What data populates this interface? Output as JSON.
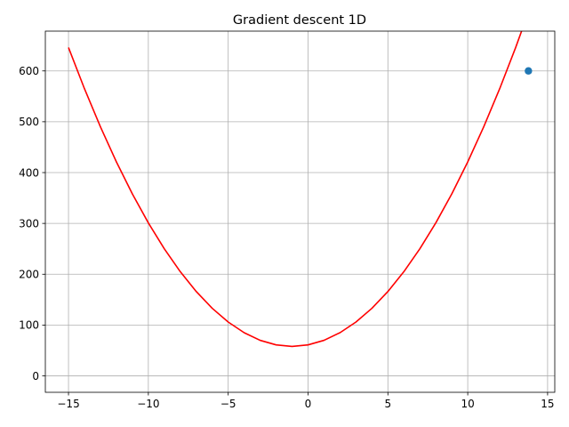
{
  "chart_data": {
    "type": "line",
    "title": "Gradient descent 1D",
    "xlabel": "",
    "ylabel": "",
    "xlim": [
      -16.45,
      15.45
    ],
    "ylim": [
      -32.3,
      678.3
    ],
    "grid": true,
    "xticks": [
      -15,
      -10,
      -5,
      0,
      5,
      10,
      15
    ],
    "xtick_labels": [
      "−15",
      "−10",
      "−5",
      "0",
      "5",
      "10",
      "15"
    ],
    "yticks": [
      0,
      100,
      200,
      300,
      400,
      500,
      600
    ],
    "ytick_labels": [
      "0",
      "100",
      "200",
      "300",
      "400",
      "500",
      "600"
    ],
    "series": [
      {
        "kind": "line",
        "color": "#ff0000",
        "x": [
          -15,
          -14,
          -13,
          -12,
          -11,
          -10,
          -9,
          -8,
          -7,
          -6,
          -5,
          -4,
          -3,
          -2,
          -1,
          0,
          1,
          2,
          3,
          4,
          5,
          6,
          7,
          8,
          9,
          10,
          11,
          12,
          13,
          14
        ],
        "y": [
          646,
          565,
          490,
          421,
          358,
          301,
          250,
          205,
          166,
          133,
          106,
          85,
          70,
          61,
          58,
          61,
          70,
          85,
          106,
          133,
          166,
          205,
          250,
          301,
          358,
          421,
          490,
          565,
          646,
          733
        ]
      },
      {
        "kind": "scatter",
        "color": "#1f77b4",
        "x": [
          13.8
        ],
        "y": [
          600
        ]
      }
    ]
  }
}
